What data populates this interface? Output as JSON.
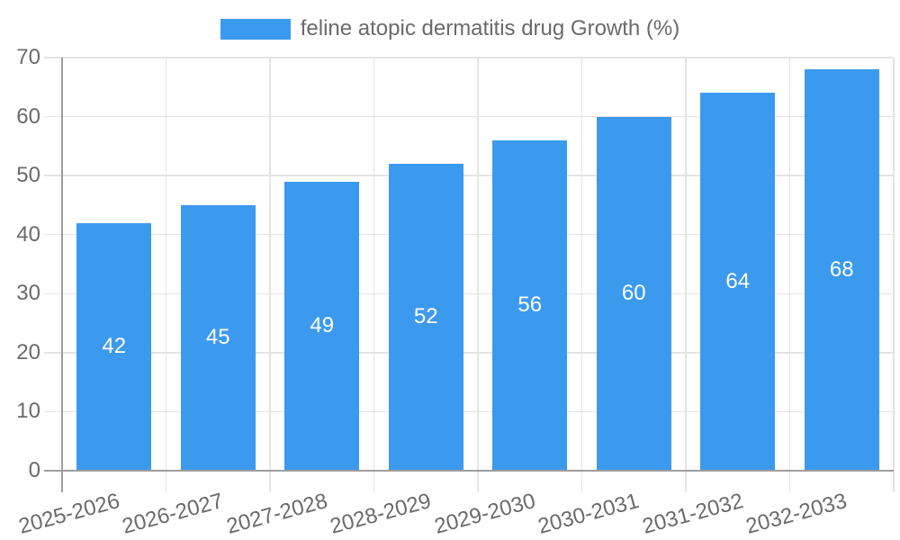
{
  "chart_data": {
    "type": "bar",
    "title": "",
    "categories": [
      "2025-2026",
      "2026-2027",
      "2027-2028",
      "2028-2029",
      "2029-2030",
      "2030-2031",
      "2031-2032",
      "2032-2033"
    ],
    "series": [
      {
        "name": "feline atopic dermatitis drug Growth (%)",
        "values": [
          42,
          45,
          49,
          52,
          56,
          60,
          64,
          68
        ],
        "color": "#3B9AEE"
      }
    ],
    "xlabel": "",
    "ylabel": "",
    "ylim": [
      0,
      70
    ],
    "yticks": [
      0,
      10,
      20,
      30,
      40,
      50,
      60,
      70
    ],
    "grid": true,
    "legend_position": "top",
    "value_labels": {
      "position": "center",
      "color": "#FFFFFF"
    },
    "colors": {
      "grid": "#E4E4E4",
      "axis": "#9E9E9E",
      "tick_text": "#6A6A6A",
      "legend_text": "#6A6A6A"
    }
  }
}
